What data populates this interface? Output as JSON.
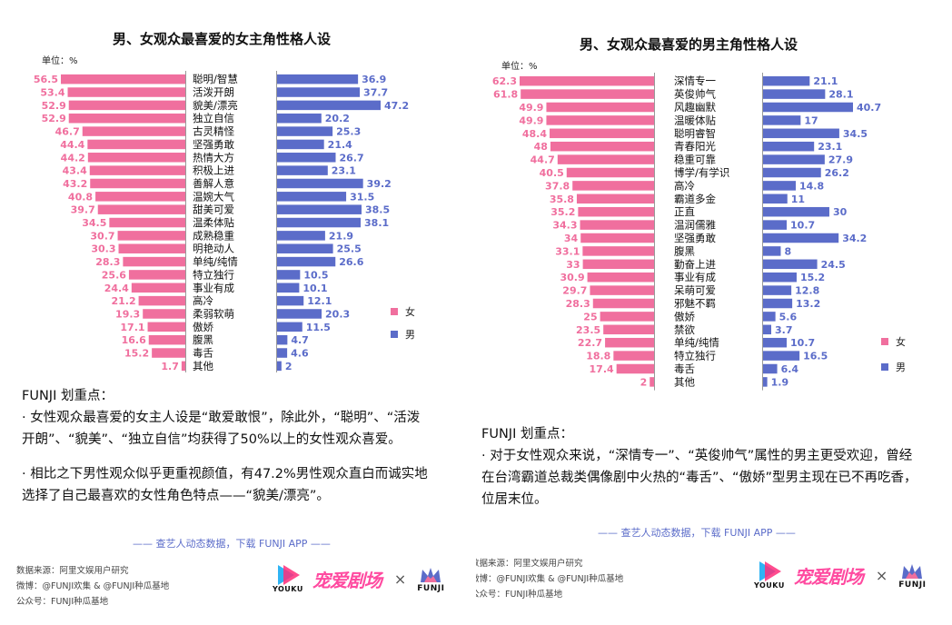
{
  "colors": {
    "female": "#f06f9e",
    "male": "#5b6cc9",
    "accent_text": "#5b6cc9"
  },
  "chart_data": [
    {
      "type": "bar",
      "orientation": "diverging-horizontal",
      "title": "男、女观众最喜爱的女主角性格人设",
      "unit": "单位：%",
      "legend": {
        "placement": "right",
        "entries": [
          "女",
          "男"
        ]
      },
      "categories": [
        "聪明/智慧",
        "活泼开朗",
        "貌美/漂亮",
        "独立自信",
        "古灵精怪",
        "坚强勇敢",
        "热情大方",
        "积极上进",
        "善解人意",
        "温婉大气",
        "甜美可爱",
        "温柔体贴",
        "成熟稳重",
        "明艳动人",
        "单纯/纯情",
        "特立独行",
        "事业有成",
        "高冷",
        "柔弱软萌",
        "傲娇",
        "腹黑",
        "毒舌",
        "其他"
      ],
      "series": [
        {
          "name": "女",
          "values": [
            56.5,
            53.4,
            52.9,
            52.9,
            46.7,
            44.4,
            44.2,
            43.4,
            43.2,
            40.8,
            39.7,
            34.5,
            30.7,
            30.3,
            28.3,
            25.6,
            24.4,
            21.2,
            19.3,
            17.1,
            16.6,
            15.2,
            1.7
          ]
        },
        {
          "name": "男",
          "values": [
            36.9,
            37.7,
            47.2,
            20.2,
            25.3,
            21.4,
            26.7,
            23.1,
            39.2,
            31.5,
            38.5,
            38.1,
            21.9,
            25.5,
            26.6,
            10.5,
            10.1,
            12.1,
            20.3,
            11.5,
            4.7,
            4.6,
            2
          ]
        }
      ]
    },
    {
      "type": "bar",
      "orientation": "diverging-horizontal",
      "title": "男、女观众最喜爱的男主角性格人设",
      "unit": "单位：%",
      "legend": {
        "placement": "right",
        "entries": [
          "女",
          "男"
        ]
      },
      "categories": [
        "深情专一",
        "英俊帅气",
        "风趣幽默",
        "温暖体贴",
        "聪明睿智",
        "青春阳光",
        "稳重可靠",
        "博学/有学识",
        "高冷",
        "霸道多金",
        "正直",
        "温润儒雅",
        "坚强勇敢",
        "腹黑",
        "勤奋上进",
        "事业有成",
        "呆萌可爱",
        "邪魅不羁",
        "傲娇",
        "禁欲",
        "单纯/纯情",
        "特立独行",
        "毒舌",
        "其他"
      ],
      "series": [
        {
          "name": "女",
          "values": [
            62.3,
            61.8,
            49.9,
            49.9,
            48.4,
            48,
            44.7,
            40.5,
            37.8,
            35.8,
            35.2,
            34.3,
            34,
            33.1,
            33,
            30.9,
            29.7,
            28.3,
            25,
            23.5,
            22.7,
            18.8,
            17.4,
            2
          ]
        },
        {
          "name": "男",
          "values": [
            21.1,
            28.1,
            40.7,
            17,
            34.5,
            23.1,
            27.9,
            26.2,
            14.8,
            11,
            30,
            10.7,
            34.2,
            8,
            24.5,
            15.2,
            12.8,
            13.2,
            5.6,
            3.7,
            10.7,
            16.5,
            6.4,
            1.9
          ]
        }
      ]
    }
  ],
  "left_notes": {
    "heading": "FUNJI 划重点：",
    "p1": "· 女性观众最喜爱的女主人设是“敢爱敢恨”，除此外，“聪明”、“活泼开朗”、“貌美”、“独立自信”均获得了50%以上的女性观众喜爱。",
    "p2": "· 相比之下男性观众似乎更重视颜值，有47.2%男性观众直白而诚实地选择了自己最喜欢的女性角色特点——“貌美/漂亮”。"
  },
  "right_notes": {
    "heading": "FUNJI 划重点：",
    "p1": "· 对于女性观众来说，“深情专一”、“英俊帅气”属性的男主更受欢迎，曾经在台湾霸道总裁类偶像剧中火热的“毒舌”、“傲娇”型男主现在已不再吃香，位居末位。"
  },
  "cta": "—— 查艺人动态数据，下载 FUNJI APP ——",
  "footer": {
    "source": "数据来源：阿里文娱用户研究",
    "weibo": "微博：@FUNJI欢集 & @FUNJI种瓜基地",
    "wechat": "公众号：FUNJI种瓜基地"
  },
  "logos": {
    "youku": "YOUKU",
    "show": "宠爱剧场",
    "times": "×",
    "funji": "FUNJI",
    "funji_icon": "crown-icon"
  }
}
